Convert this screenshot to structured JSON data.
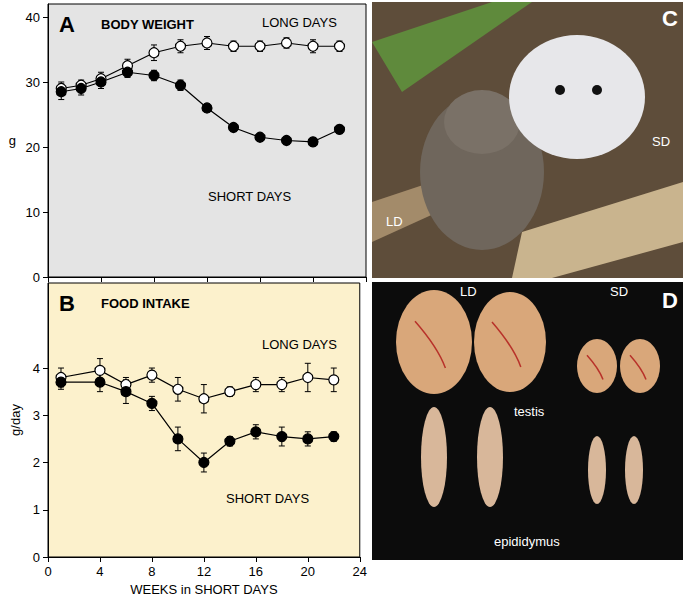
{
  "chart_data": [
    {
      "type": "line",
      "panel": "A",
      "title": "BODY WEIGHT",
      "y_label": "g",
      "xlim": [
        0,
        24
      ],
      "xticks": [
        0,
        4,
        8,
        12,
        16,
        20,
        24
      ],
      "ylim": [
        0,
        42
      ],
      "yticks": [
        0,
        10,
        20,
        30,
        40
      ],
      "tick_labels": "y",
      "grid": false,
      "series": [
        {
          "name": "LONG DAYS",
          "color": "#000000",
          "marker": "open circle",
          "line_style": "solid",
          "x": [
            1,
            2.5,
            4,
            6,
            8,
            10,
            12,
            14,
            16,
            18,
            20,
            22
          ],
          "values": [
            29,
            29.5,
            30.5,
            32.5,
            34.5,
            35.5,
            36,
            35.5,
            35.5,
            36,
            35.5,
            35.5
          ],
          "errors": [
            1,
            0.8,
            1,
            1,
            1.2,
            1,
            1,
            0.8,
            0.8,
            0.8,
            1,
            0.8
          ]
        },
        {
          "name": "SHORT DAYS",
          "color": "#000000",
          "marker": "filled circle",
          "line_style": "solid",
          "x": [
            1,
            2.5,
            4,
            6,
            8,
            10,
            12,
            14,
            16,
            18,
            20,
            22
          ],
          "values": [
            28.5,
            29,
            30,
            31.5,
            31,
            29.5,
            26,
            23,
            21.5,
            21,
            20.8,
            22.7
          ],
          "errors": [
            1.2,
            1,
            1,
            0.8,
            0.8,
            0.8,
            0.6,
            0.6,
            0.6,
            0.6,
            0.6,
            0.6
          ]
        }
      ]
    },
    {
      "type": "line",
      "panel": "B",
      "title": "FOOD INTAKE",
      "y_label": "g/day",
      "x_label": "WEEKS in SHORT DAYS",
      "xlim": [
        0,
        24
      ],
      "xticks": [
        0,
        4,
        8,
        12,
        16,
        20,
        24
      ],
      "ylim": [
        0,
        5.8
      ],
      "yticks": [
        0,
        1,
        2,
        3,
        4
      ],
      "grid": false,
      "series": [
        {
          "name": "LONG DAYS",
          "color": "#000000",
          "marker": "open circle",
          "line_style": "solid",
          "x": [
            1,
            4,
            6,
            8,
            10,
            12,
            14,
            16,
            18,
            20,
            22
          ],
          "values": [
            3.8,
            3.95,
            3.65,
            3.85,
            3.55,
            3.35,
            3.5,
            3.65,
            3.65,
            3.8,
            3.75
          ],
          "errors": [
            0.2,
            0.25,
            0.15,
            0.15,
            0.25,
            0.3,
            0.1,
            0.15,
            0.15,
            0.3,
            0.25
          ]
        },
        {
          "name": "SHORT DAYS",
          "color": "#000000",
          "marker": "filled circle",
          "line_style": "solid",
          "x": [
            1,
            4,
            6,
            8,
            10,
            12,
            14,
            16,
            18,
            20,
            22
          ],
          "values": [
            3.7,
            3.7,
            3.5,
            3.25,
            2.5,
            2.0,
            2.45,
            2.65,
            2.55,
            2.5,
            2.55
          ],
          "errors": [
            0.15,
            0.2,
            0.25,
            0.15,
            0.25,
            0.2,
            0.1,
            0.15,
            0.2,
            0.15,
            0.1
          ]
        }
      ]
    }
  ],
  "photos": [
    {
      "panel": "C",
      "labels": [
        "LD",
        "SD"
      ]
    },
    {
      "panel": "D",
      "labels": [
        "LD",
        "SD",
        "testis",
        "epididymus"
      ]
    }
  ]
}
